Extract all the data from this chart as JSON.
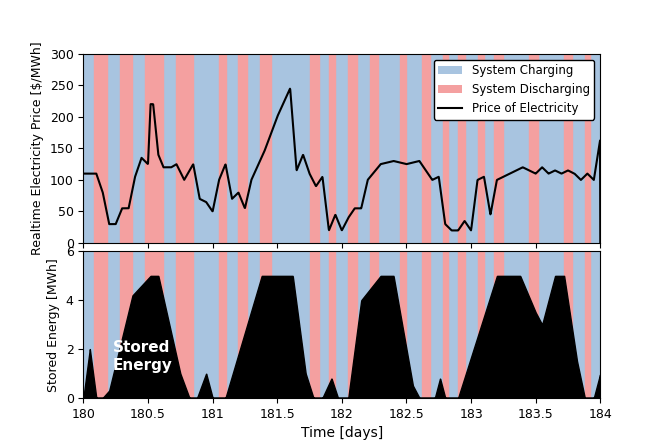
{
  "xlim": [
    180,
    184
  ],
  "price_ylim": [
    0,
    300
  ],
  "energy_ylim": [
    0,
    6
  ],
  "xticks": [
    180,
    180.5,
    181,
    181.5,
    182,
    182.5,
    183,
    183.5,
    184
  ],
  "xlabel": "Time [days]",
  "price_ylabel": "Realtime Electricity Price [$/MWh]",
  "energy_ylabel": "Stored Energy [MWh]",
  "price_yticks": [
    0,
    50,
    100,
    150,
    200,
    250,
    300
  ],
  "energy_yticks": [
    0,
    2,
    4,
    6
  ],
  "charging_color": "#a8c4e0",
  "discharging_color": "#f4a0a0",
  "price_line_color": "black",
  "energy_fill_color": "black",
  "legend_labels": [
    "System Charging",
    "System Discharging",
    "Price of Electricity"
  ],
  "stored_energy_label": "Stored\nEnergy",
  "charging_intervals": [
    [
      180.0,
      180.08
    ],
    [
      180.18,
      180.28
    ],
    [
      180.38,
      180.48
    ],
    [
      180.62,
      180.72
    ],
    [
      180.85,
      181.05
    ],
    [
      181.1,
      181.2
    ],
    [
      181.27,
      181.37
    ],
    [
      181.45,
      181.75
    ],
    [
      181.82,
      181.9
    ],
    [
      181.95,
      182.05
    ],
    [
      182.12,
      182.22
    ],
    [
      182.28,
      182.45
    ],
    [
      182.5,
      182.62
    ],
    [
      182.68,
      182.78
    ],
    [
      182.82,
      182.9
    ],
    [
      182.95,
      183.05
    ],
    [
      183.1,
      183.18
    ],
    [
      183.25,
      183.45
    ],
    [
      183.52,
      183.72
    ],
    [
      183.78,
      183.88
    ],
    [
      183.92,
      184.0
    ]
  ],
  "discharging_intervals": [
    [
      180.08,
      180.18
    ],
    [
      180.28,
      180.38
    ],
    [
      180.48,
      180.62
    ],
    [
      180.72,
      180.85
    ],
    [
      181.05,
      181.1
    ],
    [
      181.2,
      181.27
    ],
    [
      181.37,
      181.45
    ],
    [
      181.75,
      181.82
    ],
    [
      181.9,
      181.95
    ],
    [
      182.05,
      182.12
    ],
    [
      182.22,
      182.28
    ],
    [
      182.45,
      182.5
    ],
    [
      182.62,
      182.68
    ],
    [
      182.78,
      182.82
    ],
    [
      182.9,
      182.95
    ],
    [
      183.05,
      183.1
    ],
    [
      183.18,
      183.25
    ],
    [
      183.45,
      183.52
    ],
    [
      183.72,
      183.78
    ],
    [
      183.88,
      183.92
    ]
  ]
}
